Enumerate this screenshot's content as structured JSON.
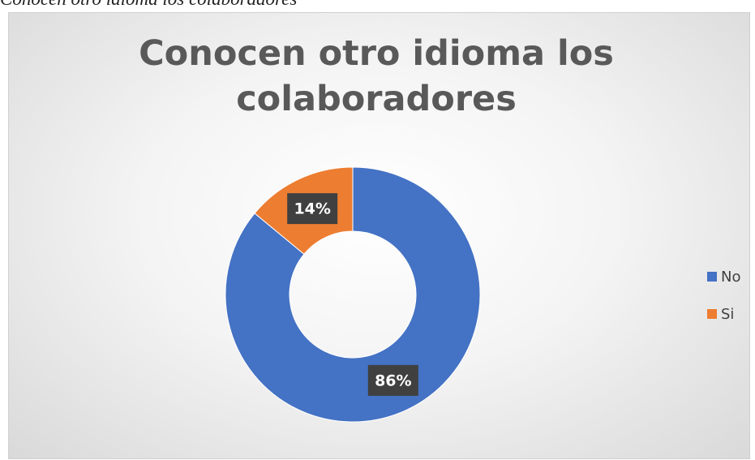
{
  "caption": "Conocen otro idioma los colaboradores",
  "chart_data": {
    "type": "doughnut",
    "title": "Conocen otro idioma los colaboradores",
    "categories": [
      "No",
      "Si"
    ],
    "values": [
      86,
      14
    ],
    "value_labels": [
      "86%",
      "14%"
    ],
    "colors": [
      "#4472c4",
      "#ed7d31"
    ],
    "legend": "right"
  }
}
